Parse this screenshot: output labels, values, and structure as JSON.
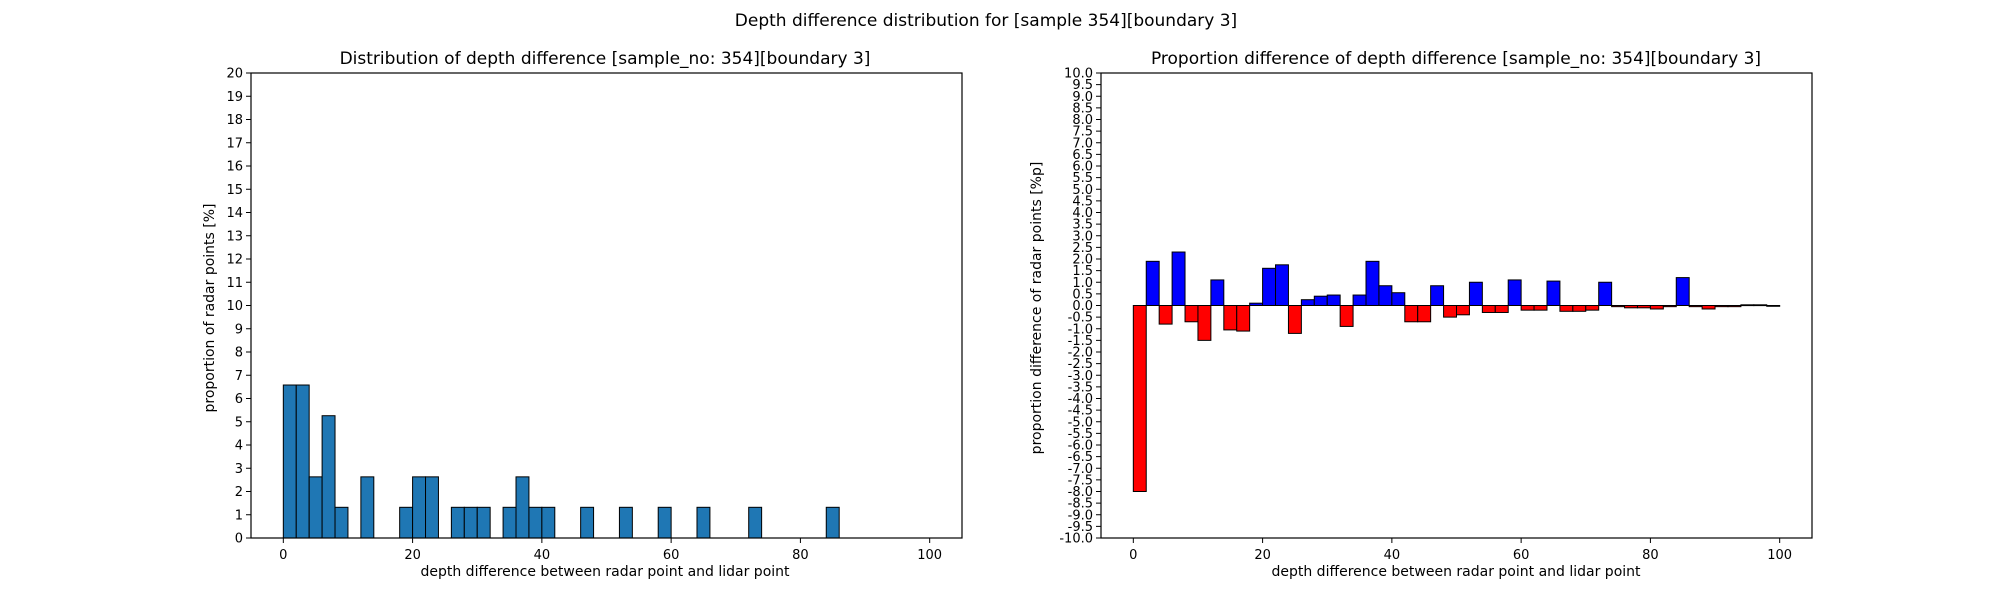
{
  "figure": {
    "suptitle": "Depth difference distribution for [sample 354][boundary 3]"
  },
  "chart_data": [
    {
      "type": "bar",
      "title": "Distribution of depth difference [sample_no: 354][boundary 3]",
      "xlabel": "depth difference between radar point and lidar point",
      "ylabel": "proportion of radar points [%]",
      "xlim": [
        -5,
        105
      ],
      "ylim": [
        0,
        20
      ],
      "xticks": [
        0,
        20,
        40,
        60,
        80,
        100
      ],
      "yticks": [
        0,
        1,
        2,
        3,
        4,
        5,
        6,
        7,
        8,
        9,
        10,
        11,
        12,
        13,
        14,
        15,
        16,
        17,
        18,
        19,
        20
      ],
      "bin_width": 2,
      "bar_color": "#1f77b4",
      "edge_color": "#000000",
      "x": [
        0,
        2,
        4,
        6,
        8,
        12,
        18,
        20,
        22,
        26,
        28,
        30,
        34,
        36,
        38,
        40,
        46,
        52,
        58,
        64,
        72,
        84
      ],
      "values": [
        6.58,
        6.58,
        2.63,
        5.26,
        1.32,
        2.63,
        1.32,
        2.63,
        2.63,
        1.32,
        1.32,
        1.32,
        1.32,
        2.63,
        1.32,
        1.32,
        1.32,
        1.32,
        1.32,
        1.32,
        1.32,
        1.32
      ]
    },
    {
      "type": "bar",
      "title": "Proportion difference of depth difference [sample_no: 354][boundary 3]",
      "xlabel": "depth difference between radar point and lidar point",
      "ylabel": "proportion difference of radar points [%p]",
      "xlim": [
        -5,
        105
      ],
      "ylim": [
        -10,
        10
      ],
      "xticks": [
        0,
        20,
        40,
        60,
        80,
        100
      ],
      "ytick_step": 0.5,
      "bin_width": 2,
      "positive_color": "#0000ff",
      "negative_color": "#ff0000",
      "edge_color": "#000000",
      "x": [
        0,
        2,
        4,
        6,
        8,
        10,
        12,
        14,
        16,
        18,
        20,
        22,
        24,
        26,
        28,
        30,
        32,
        34,
        36,
        38,
        40,
        42,
        44,
        46,
        48,
        50,
        52,
        54,
        56,
        58,
        60,
        62,
        64,
        66,
        68,
        70,
        72,
        74,
        76,
        78,
        80,
        82,
        84,
        86,
        88,
        90,
        92,
        94,
        96,
        98
      ],
      "values": [
        -8.0,
        1.9,
        -0.8,
        2.3,
        -0.7,
        -1.5,
        1.1,
        -1.05,
        -1.1,
        0.1,
        1.6,
        1.75,
        -1.2,
        0.25,
        0.4,
        0.45,
        -0.9,
        0.45,
        1.9,
        0.85,
        0.55,
        -0.7,
        -0.7,
        0.85,
        -0.5,
        -0.4,
        1.0,
        -0.3,
        -0.3,
        1.1,
        -0.2,
        -0.2,
        1.05,
        -0.25,
        -0.25,
        -0.2,
        1.0,
        -0.05,
        -0.1,
        -0.1,
        -0.15,
        -0.05,
        1.2,
        -0.05,
        -0.15,
        -0.05,
        -0.05,
        0.03,
        0.03,
        -0.03
      ]
    }
  ]
}
